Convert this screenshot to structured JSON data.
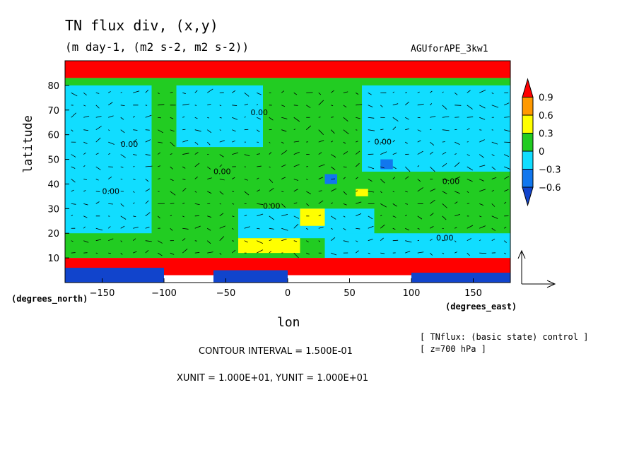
{
  "plot": {
    "title": "TN flux div, (x,y)",
    "subtitle": "(m day-1, (m2 s-2, m2 s-2))",
    "dataset": "AGUforAPE_3kw1",
    "notes": [
      "[ TNflux: (basic state) control ]",
      "[ z=700 hPa ]"
    ],
    "contour_interval": "CONTOUR INTERVAL = 1.500E-01",
    "units": "XUNIT = 1.000E+01, YUNIT = 1.000E+01"
  },
  "chart_data": {
    "type": "heatmap",
    "title": "TN flux div, (x,y)",
    "subtitle": "(m day-1, (m2 s-2, m2 s-2))",
    "xlabel": "lon",
    "ylabel": "latitude",
    "x_unit_label": "(degrees_east)",
    "y_unit_label": "(degrees_north)",
    "xlim": [
      -180,
      180
    ],
    "ylim": [
      0,
      90
    ],
    "x_ticks": [
      -150,
      -100,
      -50,
      0,
      50,
      100,
      150
    ],
    "y_ticks": [
      10,
      20,
      30,
      40,
      50,
      60,
      70,
      80
    ],
    "colorbar": {
      "levels": [
        "0.9",
        "0.6",
        "0.3",
        "0",
        "-0.3",
        "-0.6"
      ],
      "colors": [
        "#ff0000",
        "#ff9900",
        "#ffff00",
        "#22cc22",
        "#11ddff",
        "#1177ee",
        "#1144cc"
      ]
    },
    "contour_labels": [
      "0.00",
      "0.00",
      "0.00",
      "0.00",
      "0.00",
      "0.00",
      "0.00",
      "0.00"
    ],
    "regions": [
      {
        "value": 1.0,
        "lon": [
          -180,
          180
        ],
        "lat": [
          83,
          90
        ]
      },
      {
        "value": 0.1,
        "lon": [
          -180,
          180
        ],
        "lat": [
          10,
          83
        ]
      },
      {
        "value": -0.1,
        "lon": [
          -180,
          -110
        ],
        "lat": [
          20,
          80
        ]
      },
      {
        "value": -0.1,
        "lon": [
          -90,
          -20
        ],
        "lat": [
          55,
          80
        ]
      },
      {
        "value": -0.1,
        "lon": [
          60,
          180
        ],
        "lat": [
          45,
          80
        ]
      },
      {
        "value": -0.1,
        "lon": [
          -40,
          70
        ],
        "lat": [
          18,
          30
        ]
      },
      {
        "value": -0.1,
        "lon": [
          30,
          180
        ],
        "lat": [
          10,
          20
        ]
      },
      {
        "value": 0.4,
        "lon": [
          10,
          30
        ],
        "lat": [
          23,
          30
        ]
      },
      {
        "value": 0.4,
        "lon": [
          -40,
          10
        ],
        "lat": [
          12,
          18
        ]
      },
      {
        "value": 0.4,
        "lon": [
          55,
          65
        ],
        "lat": [
          35,
          38
        ]
      },
      {
        "value": -0.45,
        "lon": [
          30,
          40
        ],
        "lat": [
          40,
          44
        ]
      },
      {
        "value": -0.45,
        "lon": [
          75,
          85
        ],
        "lat": [
          46,
          50
        ]
      },
      {
        "value": 1.0,
        "lon": [
          -180,
          180
        ],
        "lat": [
          3,
          10
        ]
      },
      {
        "value": -0.7,
        "lon": [
          -180,
          -100
        ],
        "lat": [
          0,
          6
        ]
      },
      {
        "value": -0.7,
        "lon": [
          -60,
          0
        ],
        "lat": [
          0,
          5
        ]
      },
      {
        "value": -0.7,
        "lon": [
          100,
          180
        ],
        "lat": [
          0,
          4
        ]
      }
    ]
  }
}
